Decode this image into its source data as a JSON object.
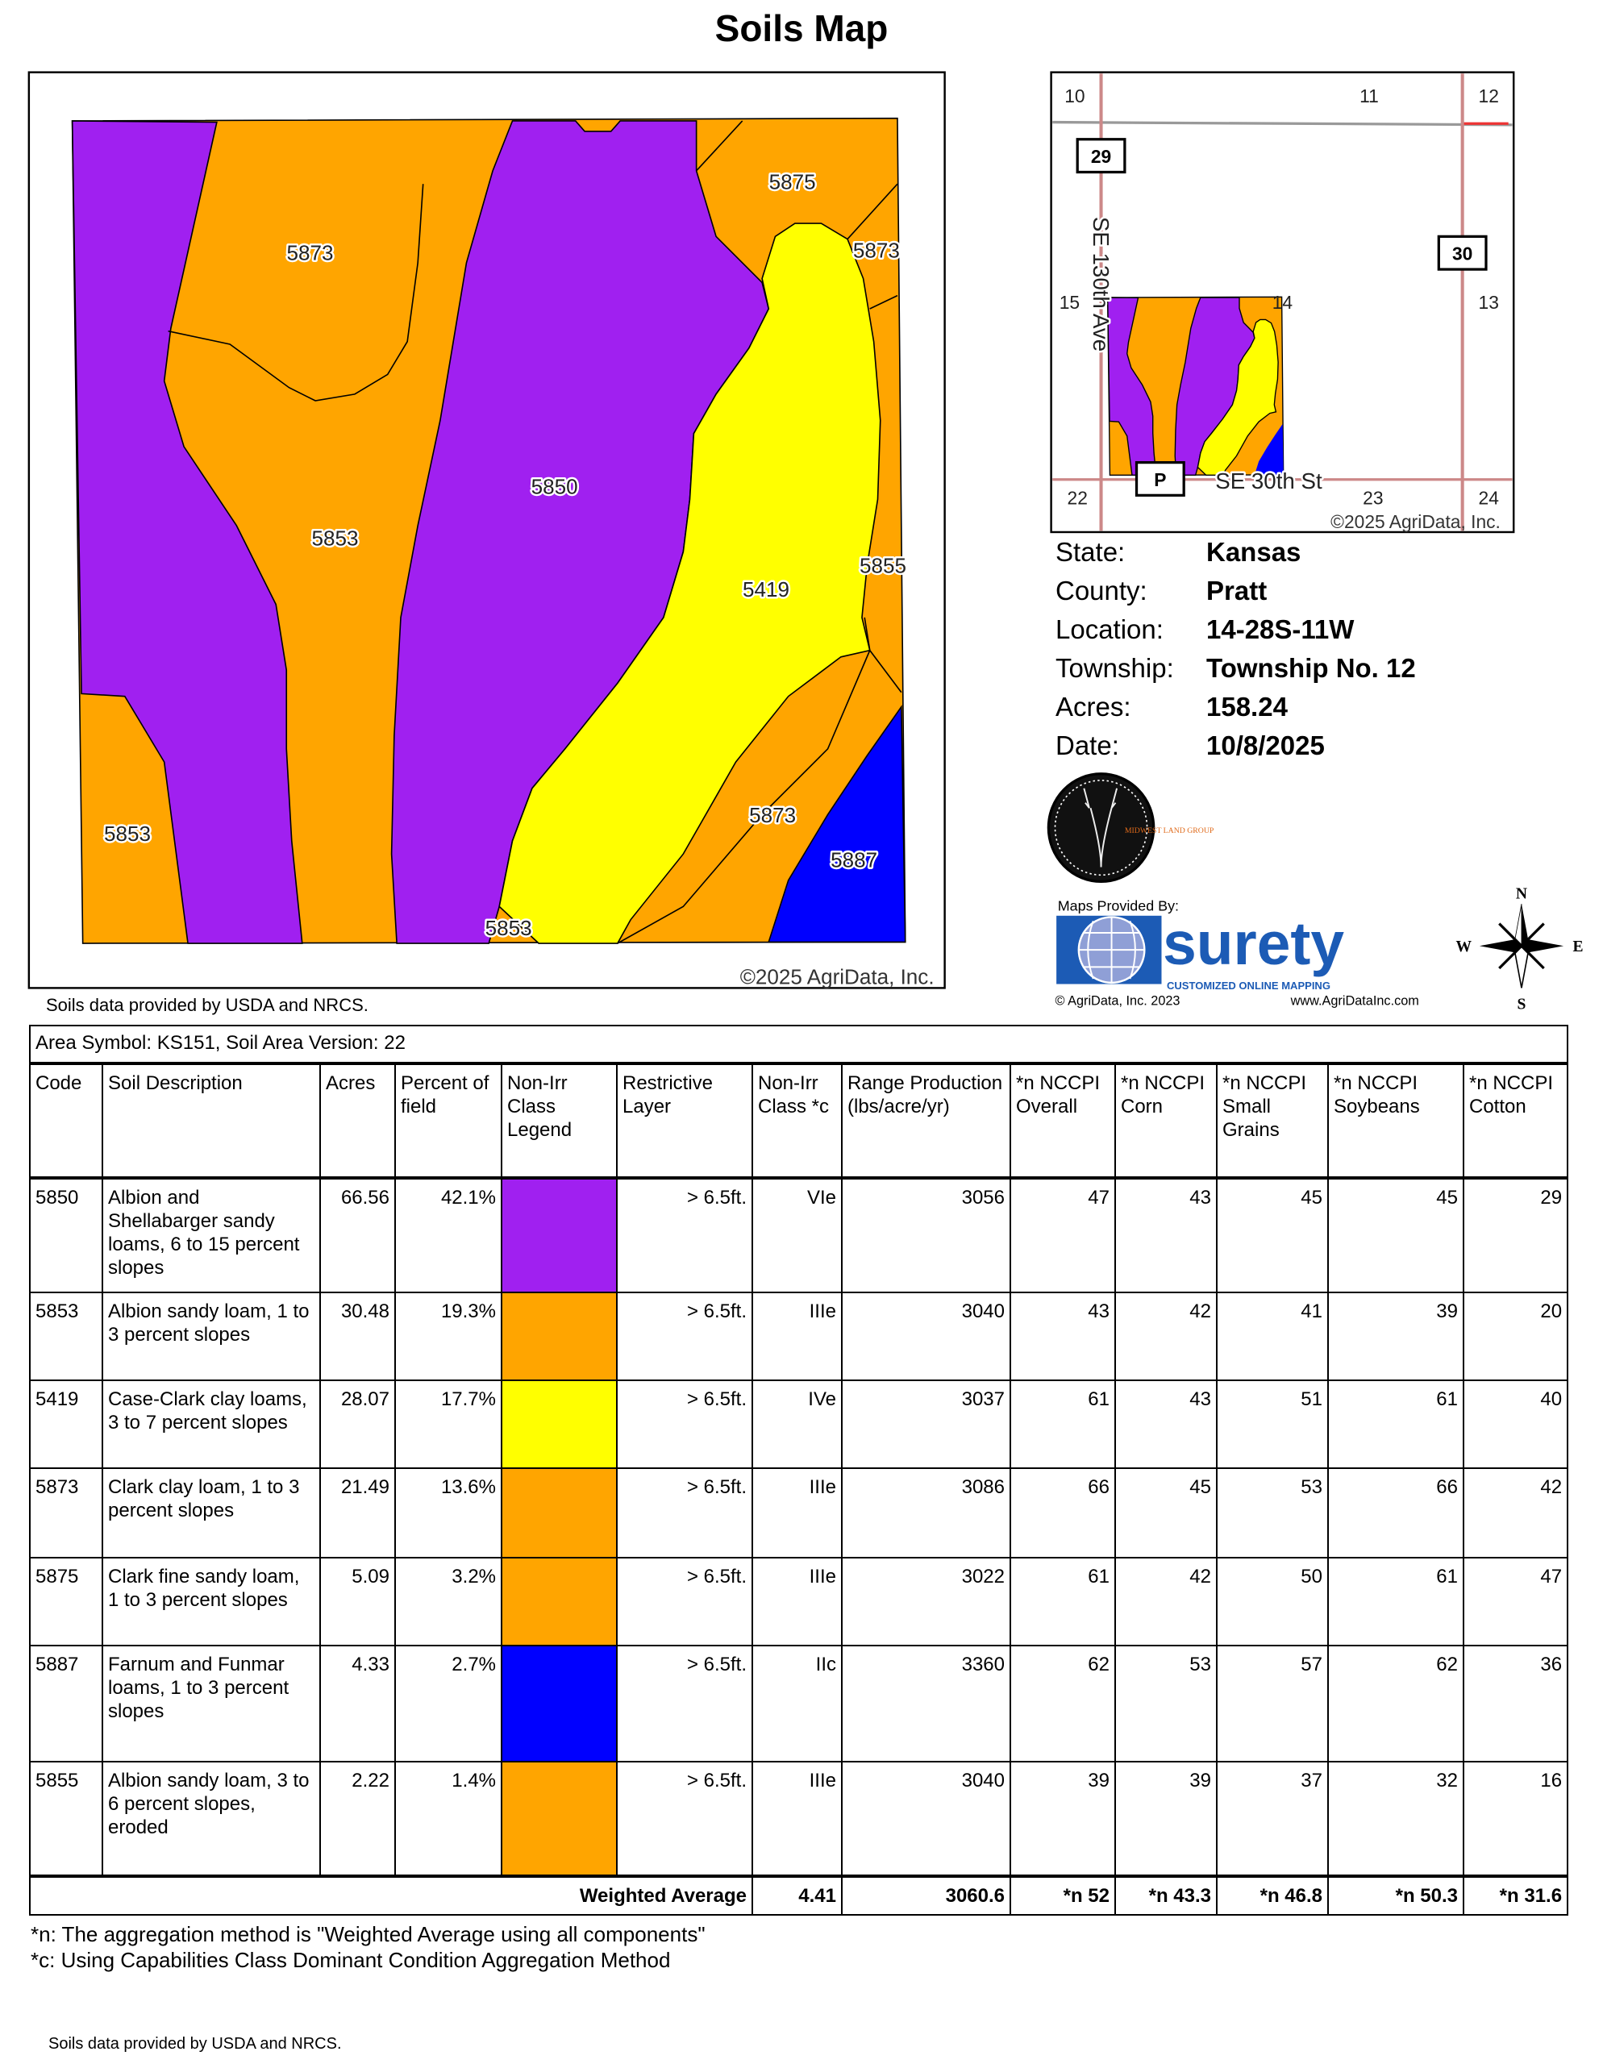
{
  "title": "Soils Map",
  "map": {
    "copyright": "©2025 AgriData, Inc.",
    "labels": [
      "5873",
      "5875",
      "5873",
      "5850",
      "5853",
      "5419",
      "5855",
      "5853",
      "5873",
      "5887",
      "5853"
    ],
    "colors": {
      "purple": "#A020F0",
      "orange": "#FFA500",
      "yellow": "#FFFF00",
      "blue": "#0000FF"
    }
  },
  "inset": {
    "sections": [
      "10",
      "11",
      "12",
      "15",
      "14",
      "13",
      "22",
      "23",
      "24"
    ],
    "shields": [
      "29",
      "30",
      "P"
    ],
    "road_ns": "SE 130th Ave",
    "road_ew": "SE 30th St",
    "copyright": "©2025 AgriData, Inc."
  },
  "info": [
    {
      "label": "State:",
      "value": "Kansas"
    },
    {
      "label": "County:",
      "value": "Pratt"
    },
    {
      "label": "Location:",
      "value": "14-28S-11W"
    },
    {
      "label": "Township:",
      "value": "Township No. 12"
    },
    {
      "label": "Acres:",
      "value": "158.24"
    },
    {
      "label": "Date:",
      "value": "10/8/2025"
    }
  ],
  "logos": {
    "midwest": "MIDWEST LAND GROUP",
    "maps_provided_by": "Maps Provided By:",
    "surety": "surety",
    "surety_tagline": "CUSTOMIZED ONLINE MAPPING",
    "agridata_copyright": "© AgriData, Inc. 2023",
    "agridata_url": "www.AgriDataInc.com",
    "compass": [
      "N",
      "E",
      "S",
      "W"
    ]
  },
  "source_note": "Soils data provided by USDA and NRCS.",
  "table": {
    "area_symbol": "Area Symbol: KS151, Soil Area Version: 22",
    "headers": [
      "Code",
      "Soil Description",
      "Acres",
      "Percent of field",
      "Non-Irr Class Legend",
      "Restrictive Layer",
      "Non-Irr Class *c",
      "Range Production (lbs/acre/yr)",
      "*n NCCPI Overall",
      "*n NCCPI Corn",
      "*n NCCPI Small Grains",
      "*n NCCPI Soybeans",
      "*n NCCPI Cotton"
    ],
    "rows": [
      {
        "code": "5850",
        "desc": "Albion and Shellabarger sandy loams, 6 to 15 percent slopes",
        "acres": "66.56",
        "pct": "42.1%",
        "color": "#A020F0",
        "restrictive": "> 6.5ft.",
        "cls": "VIe",
        "range": "3056",
        "overall": "47",
        "corn": "43",
        "small": "45",
        "soy": "45",
        "cotton": "29"
      },
      {
        "code": "5853",
        "desc": "Albion sandy loam, 1 to 3 percent slopes",
        "acres": "30.48",
        "pct": "19.3%",
        "color": "#FFA500",
        "restrictive": "> 6.5ft.",
        "cls": "IIIe",
        "range": "3040",
        "overall": "43",
        "corn": "42",
        "small": "41",
        "soy": "39",
        "cotton": "20"
      },
      {
        "code": "5419",
        "desc": "Case-Clark clay loams, 3 to 7 percent slopes",
        "acres": "28.07",
        "pct": "17.7%",
        "color": "#FFFF00",
        "restrictive": "> 6.5ft.",
        "cls": "IVe",
        "range": "3037",
        "overall": "61",
        "corn": "43",
        "small": "51",
        "soy": "61",
        "cotton": "40"
      },
      {
        "code": "5873",
        "desc": "Clark clay loam, 1 to 3 percent slopes",
        "acres": "21.49",
        "pct": "13.6%",
        "color": "#FFA500",
        "restrictive": "> 6.5ft.",
        "cls": "IIIe",
        "range": "3086",
        "overall": "66",
        "corn": "45",
        "small": "53",
        "soy": "66",
        "cotton": "42"
      },
      {
        "code": "5875",
        "desc": "Clark fine sandy loam, 1 to 3 percent slopes",
        "acres": "5.09",
        "pct": "3.2%",
        "color": "#FFA500",
        "restrictive": "> 6.5ft.",
        "cls": "IIIe",
        "range": "3022",
        "overall": "61",
        "corn": "42",
        "small": "50",
        "soy": "61",
        "cotton": "47"
      },
      {
        "code": "5887",
        "desc": "Farnum and Funmar loams, 1 to 3 percent slopes",
        "acres": "4.33",
        "pct": "2.7%",
        "color": "#0000FF",
        "restrictive": "> 6.5ft.",
        "cls": "IIc",
        "range": "3360",
        "overall": "62",
        "corn": "53",
        "small": "57",
        "soy": "62",
        "cotton": "36"
      },
      {
        "code": "5855",
        "desc": "Albion sandy loam, 3 to 6 percent slopes, eroded",
        "acres": "2.22",
        "pct": "1.4%",
        "color": "#FFA500",
        "restrictive": "> 6.5ft.",
        "cls": "IIIe",
        "range": "3040",
        "overall": "39",
        "corn": "39",
        "small": "37",
        "soy": "32",
        "cotton": "16"
      }
    ],
    "weighted": {
      "label": "Weighted Average",
      "cls": "4.41",
      "range": "3060.6",
      "overall": "*n 52",
      "corn": "*n 43.3",
      "small": "*n 46.8",
      "soy": "*n 50.3",
      "cotton": "*n 31.6"
    }
  },
  "footnotes": [
    "*n: The aggregation method is \"Weighted Average using all components\"",
    "*c: Using Capabilities Class Dominant Condition Aggregation Method"
  ],
  "bottom_note": "Soils data provided by USDA and NRCS."
}
